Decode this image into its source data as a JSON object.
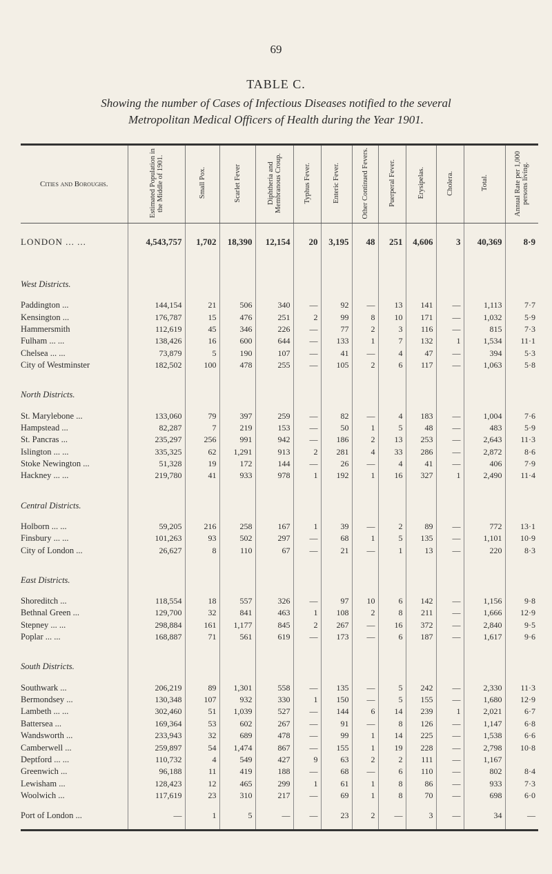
{
  "header": {
    "page_number": "69",
    "title": "TABLE C.",
    "subtitle": [
      "Showing the number of Cases of Infectious Diseases notified to the several",
      "Metropolitan Medical Officers of Health during the Year 1901."
    ]
  },
  "table": {
    "columns": [
      "Cities and Boroughs.",
      "Estimated Population in the Middle of 1901.",
      "Small Pox.",
      "Scarlet Fever",
      "Diphtheria and Membranous Croup.",
      "Typhus Fever.",
      "Enteric Fever.",
      "Other Continued Fevers.",
      "Puerperal Fever.",
      "Erysipelas.",
      "Cholera.",
      "Total.",
      "Annual Rate per 1,000 persons living."
    ],
    "london": {
      "name": "LONDON ... ...",
      "values": [
        "4,543,757",
        "1,702",
        "18,390",
        "12,154",
        "20",
        "3,195",
        "48",
        "251",
        "4,606",
        "3",
        "40,369",
        "8·9"
      ]
    },
    "sections": [
      {
        "heading": "West Districts.",
        "rows": [
          {
            "name": "Paddington ...",
            "values": [
              "144,154",
              "21",
              "506",
              "340",
              "—",
              "92",
              "—",
              "13",
              "141",
              "—",
              "1,113",
              "7·7"
            ]
          },
          {
            "name": "Kensington ...",
            "values": [
              "176,787",
              "15",
              "476",
              "251",
              "2",
              "99",
              "8",
              "10",
              "171",
              "—",
              "1,032",
              "5·9"
            ]
          },
          {
            "name": "Hammersmith",
            "values": [
              "112,619",
              "45",
              "346",
              "226",
              "—",
              "77",
              "2",
              "3",
              "116",
              "—",
              "815",
              "7·3"
            ]
          },
          {
            "name": "Fulham ... ...",
            "values": [
              "138,426",
              "16",
              "600",
              "644",
              "—",
              "133",
              "1",
              "7",
              "132",
              "1",
              "1,534",
              "11·1"
            ]
          },
          {
            "name": "Chelsea ... ...",
            "values": [
              "73,879",
              "5",
              "190",
              "107",
              "—",
              "41",
              "—",
              "4",
              "47",
              "—",
              "394",
              "5·3"
            ]
          },
          {
            "name": "City of Westminster",
            "values": [
              "182,502",
              "100",
              "478",
              "255",
              "—",
              "105",
              "2",
              "6",
              "117",
              "—",
              "1,063",
              "5·8"
            ]
          }
        ]
      },
      {
        "heading": "North Districts.",
        "rows": [
          {
            "name": "St. Marylebone ...",
            "values": [
              "133,060",
              "79",
              "397",
              "259",
              "—",
              "82",
              "—",
              "4",
              "183",
              "—",
              "1,004",
              "7·6"
            ]
          },
          {
            "name": "Hampstead ...",
            "values": [
              "82,287",
              "7",
              "219",
              "153",
              "—",
              "50",
              "1",
              "5",
              "48",
              "—",
              "483",
              "5·9"
            ]
          },
          {
            "name": "St. Pancras ...",
            "values": [
              "235,297",
              "256",
              "991",
              "942",
              "—",
              "186",
              "2",
              "13",
              "253",
              "—",
              "2,643",
              "11·3"
            ]
          },
          {
            "name": "Islington ... ...",
            "values": [
              "335,325",
              "62",
              "1,291",
              "913",
              "2",
              "281",
              "4",
              "33",
              "286",
              "—",
              "2,872",
              "8·6"
            ]
          },
          {
            "name": "Stoke Newington ...",
            "values": [
              "51,328",
              "19",
              "172",
              "144",
              "—",
              "26",
              "—",
              "4",
              "41",
              "—",
              "406",
              "7·9"
            ]
          },
          {
            "name": "Hackney ... ...",
            "values": [
              "219,780",
              "41",
              "933",
              "978",
              "1",
              "192",
              "1",
              "16",
              "327",
              "1",
              "2,490",
              "11·4"
            ]
          }
        ]
      },
      {
        "heading": "Central Districts.",
        "rows": [
          {
            "name": "Holborn ... ...",
            "values": [
              "59,205",
              "216",
              "258",
              "167",
              "1",
              "39",
              "—",
              "2",
              "89",
              "—",
              "772",
              "13·1"
            ]
          },
          {
            "name": "Finsbury ... ...",
            "values": [
              "101,263",
              "93",
              "502",
              "297",
              "—",
              "68",
              "1",
              "5",
              "135",
              "—",
              "1,101",
              "10·9"
            ]
          },
          {
            "name": "City of London ...",
            "values": [
              "26,627",
              "8",
              "110",
              "67",
              "—",
              "21",
              "—",
              "1",
              "13",
              "—",
              "220",
              "8·3"
            ]
          }
        ]
      },
      {
        "heading": "East Districts.",
        "rows": [
          {
            "name": "Shoreditch ...",
            "values": [
              "118,554",
              "18",
              "557",
              "326",
              "—",
              "97",
              "10",
              "6",
              "142",
              "—",
              "1,156",
              "9·8"
            ]
          },
          {
            "name": "Bethnal Green ...",
            "values": [
              "129,700",
              "32",
              "841",
              "463",
              "1",
              "108",
              "2",
              "8",
              "211",
              "—",
              "1,666",
              "12·9"
            ]
          },
          {
            "name": "Stepney ... ...",
            "values": [
              "298,884",
              "161",
              "1,177",
              "845",
              "2",
              "267",
              "—",
              "16",
              "372",
              "—",
              "2,840",
              "9·5"
            ]
          },
          {
            "name": "Poplar ... ...",
            "values": [
              "168,887",
              "71",
              "561",
              "619",
              "—",
              "173",
              "—",
              "6",
              "187",
              "—",
              "1,617",
              "9·6"
            ]
          }
        ]
      },
      {
        "heading": "South Districts.",
        "rows": [
          {
            "name": "Southwark ...",
            "values": [
              "206,219",
              "89",
              "1,301",
              "558",
              "—",
              "135",
              "—",
              "5",
              "242",
              "—",
              "2,330",
              "11·3"
            ]
          },
          {
            "name": "Bermondsey ...",
            "values": [
              "130,348",
              "107",
              "932",
              "330",
              "1",
              "150",
              "—",
              "5",
              "155",
              "—",
              "1,680",
              "12·9"
            ]
          },
          {
            "name": "Lambeth ... ...",
            "values": [
              "302,460",
              "51",
              "1,039",
              "527",
              "—",
              "144",
              "6",
              "14",
              "239",
              "1",
              "2,021",
              "6·7"
            ]
          },
          {
            "name": "Battersea ...",
            "values": [
              "169,364",
              "53",
              "602",
              "267",
              "—",
              "91",
              "—",
              "8",
              "126",
              "—",
              "1,147",
              "6·8"
            ]
          },
          {
            "name": "Wandsworth ...",
            "values": [
              "233,943",
              "32",
              "689",
              "478",
              "—",
              "99",
              "1",
              "14",
              "225",
              "—",
              "1,538",
              "6·6"
            ]
          },
          {
            "name": "Camberwell ...",
            "values": [
              "259,897",
              "54",
              "1,474",
              "867",
              "—",
              "155",
              "1",
              "19",
              "228",
              "—",
              "2,798",
              "10·8"
            ]
          },
          {
            "name": "Deptford ... ...",
            "values": [
              "110,732",
              "4",
              "549",
              "427",
              "9",
              "63",
              "2",
              "2",
              "111",
              "—",
              "1,167",
              null
            ]
          },
          {
            "name": "Greenwich ...",
            "values": [
              "96,188",
              "11",
              "419",
              "188",
              "—",
              "68",
              "—",
              "6",
              "110",
              "—",
              "802",
              "8·4"
            ]
          },
          {
            "name": "Lewisham ...",
            "values": [
              "128,423",
              "12",
              "465",
              "299",
              "1",
              "61",
              "1",
              "8",
              "86",
              "—",
              "933",
              "7·3"
            ]
          },
          {
            "name": "Woolwich ...",
            "values": [
              "117,619",
              "23",
              "310",
              "217",
              "—",
              "69",
              "1",
              "8",
              "70",
              "—",
              "698",
              "6·0"
            ]
          }
        ]
      }
    ],
    "final_row": {
      "name": "Port of London ...",
      "values": [
        "—",
        "1",
        "5",
        "—",
        "—",
        "23",
        "2",
        "—",
        "3",
        "—",
        "34",
        "—"
      ]
    }
  }
}
